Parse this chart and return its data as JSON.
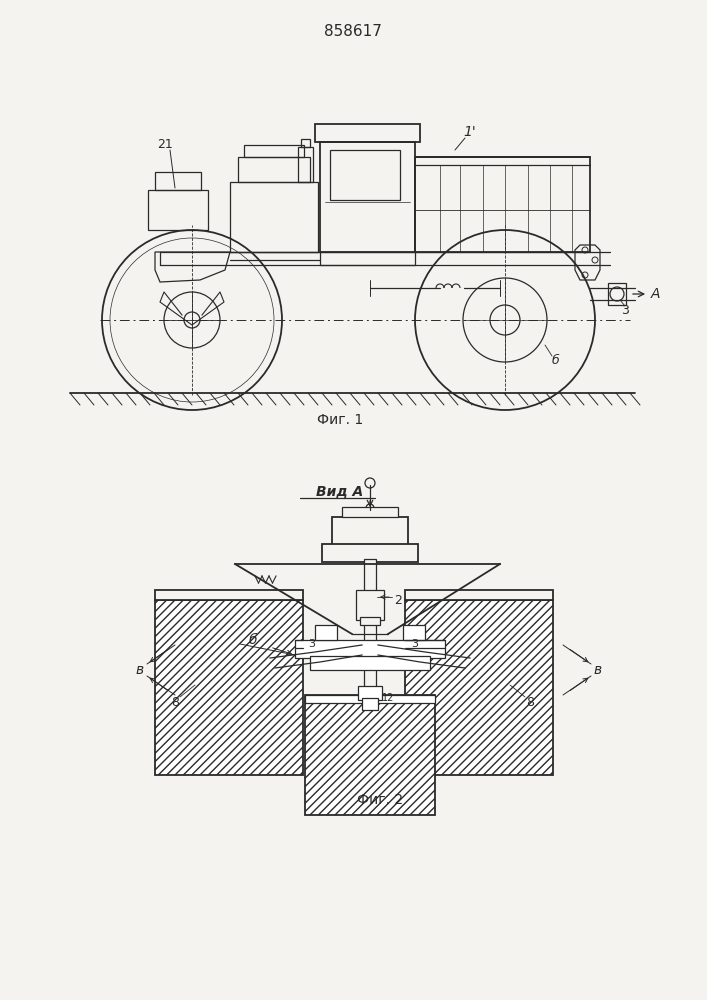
{
  "patent_number": "858617",
  "fig1_caption": "Фиг. 1",
  "fig2_caption": "Фиг. 2",
  "view_label": "Вид А",
  "bg_color": "#f5f3ef",
  "line_color": "#2a2a2a",
  "label_1": "1",
  "label_2": "2",
  "label_3": "3",
  "label_6": "б",
  "label_8": "8",
  "label_12": "12",
  "label_21": "21",
  "label_A": "А",
  "label_B": "в",
  "label_b6": "б"
}
